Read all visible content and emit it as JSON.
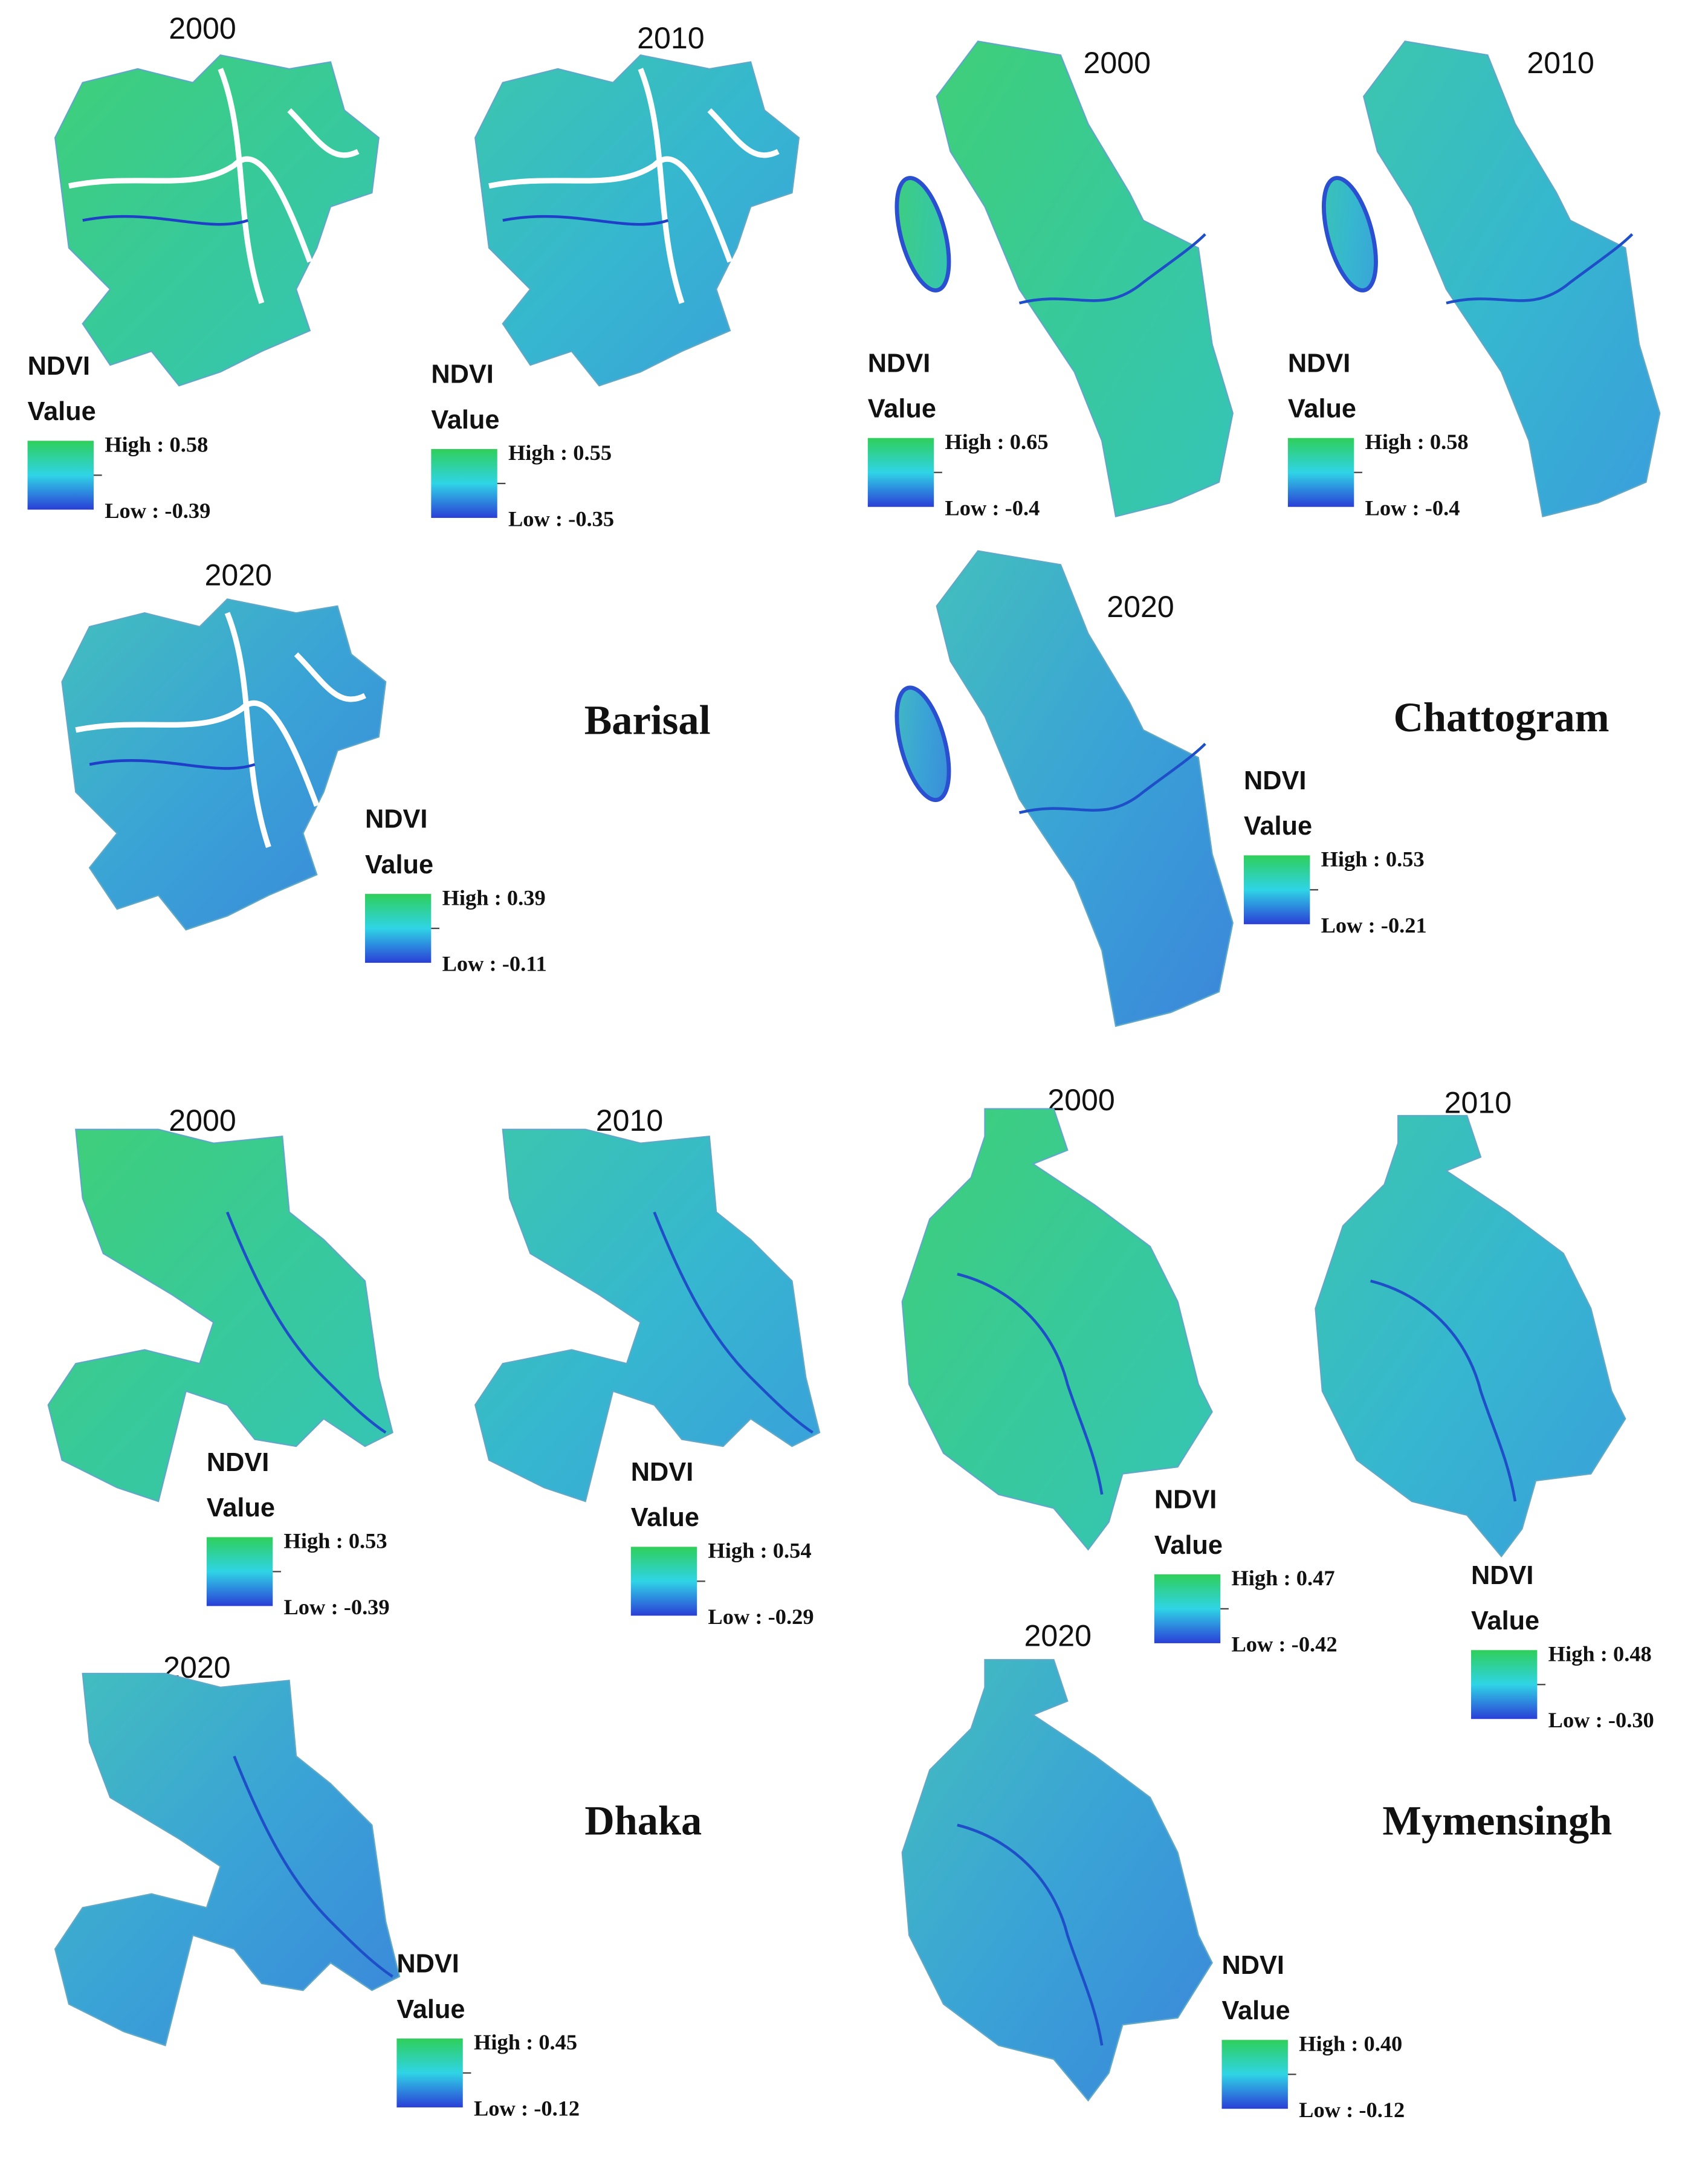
{
  "regions": [
    {
      "name": "Barisal",
      "maps": [
        {
          "year": 2000,
          "legend_title": "NDVI",
          "legend_subtitle": "Value",
          "high": "High : 0.58",
          "low": "Low : -0.39"
        },
        {
          "year": 2010,
          "legend_title": "NDVI",
          "legend_subtitle": "Value",
          "high": "High : 0.55",
          "low": "Low : -0.35"
        },
        {
          "year": 2020,
          "legend_title": "NDVI",
          "legend_subtitle": "Value",
          "high": "High : 0.39",
          "low": "Low : -0.11"
        }
      ]
    },
    {
      "name": "Chattogram",
      "maps": [
        {
          "year": 2000,
          "legend_title": "NDVI",
          "legend_subtitle": "Value",
          "high": "High : 0.65",
          "low": "Low : -0.4"
        },
        {
          "year": 2010,
          "legend_title": "NDVI",
          "legend_subtitle": "Value",
          "high": "High : 0.58",
          "low": "Low : -0.4"
        },
        {
          "year": 2020,
          "legend_title": "NDVI",
          "legend_subtitle": "Value",
          "high": "High : 0.53",
          "low": "Low : -0.21"
        }
      ]
    },
    {
      "name": "Dhaka",
      "maps": [
        {
          "year": 2000,
          "legend_title": "NDVI",
          "legend_subtitle": "Value",
          "high": "High : 0.53",
          "low": "Low : -0.39"
        },
        {
          "year": 2010,
          "legend_title": "NDVI",
          "legend_subtitle": "Value",
          "high": "High : 0.54",
          "low": "Low : -0.29"
        },
        {
          "year": 2020,
          "legend_title": "NDVI",
          "legend_subtitle": "Value",
          "high": "High : 0.45",
          "low": "Low : -0.12"
        }
      ]
    },
    {
      "name": "Mymensingh",
      "maps": [
        {
          "year": 2000,
          "legend_title": "NDVI",
          "legend_subtitle": "Value",
          "high": "High : 0.47",
          "low": "Low : -0.42"
        },
        {
          "year": 2010,
          "legend_title": "NDVI",
          "legend_subtitle": "Value",
          "high": "High : 0.48",
          "low": "Low : -0.30"
        },
        {
          "year": 2020,
          "legend_title": "NDVI",
          "legend_subtitle": "Value",
          "high": "High : 0.40",
          "low": "Low : -0.12"
        }
      ]
    }
  ]
}
